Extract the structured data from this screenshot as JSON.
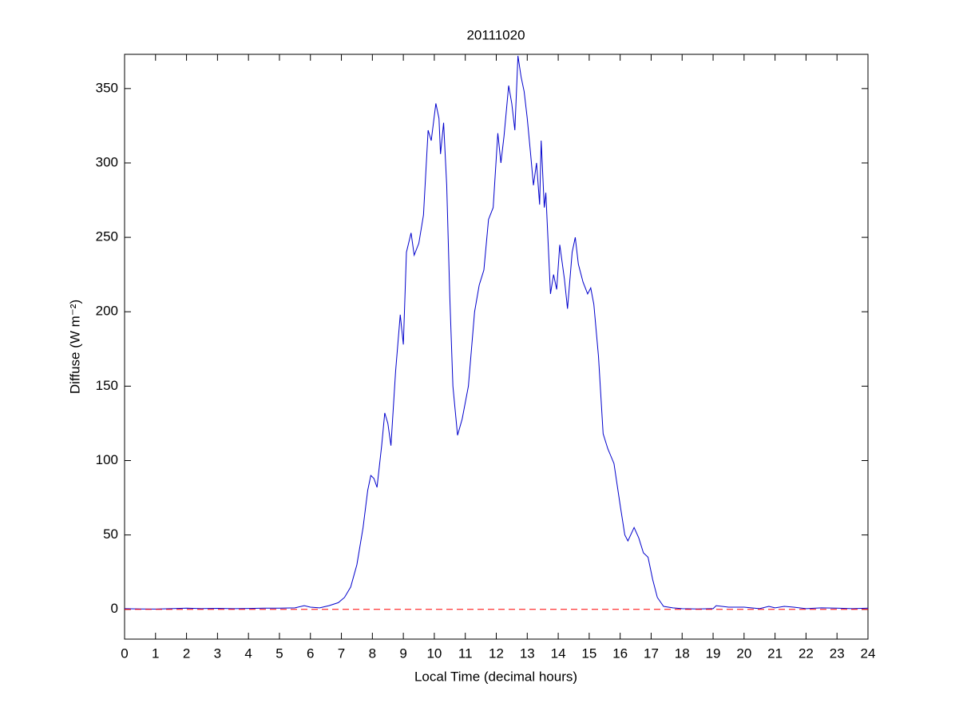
{
  "chart_data": {
    "type": "line",
    "title": "20111020",
    "xlabel": "Local Time (decimal hours)",
    "ylabel": "Diffuse (W m⁻²)",
    "xlim": [
      0,
      24
    ],
    "xticks": [
      0,
      1,
      2,
      3,
      4,
      5,
      6,
      7,
      8,
      9,
      10,
      11,
      12,
      13,
      14,
      15,
      16,
      17,
      18,
      19,
      20,
      21,
      22,
      23,
      24
    ],
    "ylim": [
      -20,
      373
    ],
    "yticks": [
      0,
      50,
      100,
      150,
      200,
      250,
      300,
      350
    ],
    "grid": false,
    "series": [
      {
        "color": "#0000cc",
        "dashed": false,
        "x": [
          0,
          0.5,
          1,
          1.5,
          2,
          2.5,
          3,
          3.5,
          4,
          4.5,
          5,
          5.5,
          5.8,
          6,
          6.3,
          6.6,
          6.9,
          7.1,
          7.3,
          7.5,
          7.7,
          7.85,
          7.95,
          8.05,
          8.15,
          8.3,
          8.4,
          8.5,
          8.6,
          8.75,
          8.9,
          9.0,
          9.1,
          9.25,
          9.35,
          9.5,
          9.65,
          9.8,
          9.9,
          10.05,
          10.15,
          10.2,
          10.3,
          10.4,
          10.5,
          10.6,
          10.75,
          10.9,
          11.1,
          11.3,
          11.45,
          11.6,
          11.75,
          11.9,
          12.05,
          12.15,
          12.25,
          12.4,
          12.5,
          12.6,
          12.7,
          12.8,
          12.9,
          13.0,
          13.1,
          13.2,
          13.3,
          13.4,
          13.45,
          13.55,
          13.6,
          13.75,
          13.85,
          13.95,
          14.05,
          14.2,
          14.3,
          14.45,
          14.55,
          14.65,
          14.8,
          14.95,
          15.05,
          15.15,
          15.3,
          15.45,
          15.6,
          15.8,
          16.0,
          16.15,
          16.25,
          16.45,
          16.6,
          16.75,
          16.9,
          17.05,
          17.2,
          17.4,
          17.7,
          18,
          18.5,
          19,
          19.1,
          19.5,
          20,
          20.5,
          20.8,
          21,
          21.3,
          21.6,
          22,
          22.5,
          23,
          23.5,
          24
        ],
        "values": [
          0.5,
          0.3,
          0.2,
          0.5,
          0.8,
          0.5,
          0.7,
          0.5,
          0.6,
          0.8,
          0.8,
          1,
          2.5,
          1.5,
          1,
          2.5,
          4.5,
          8,
          15,
          30,
          55,
          80,
          90,
          88,
          82,
          110,
          132,
          125,
          110,
          160,
          198,
          178,
          240,
          253,
          238,
          246,
          265,
          322,
          315,
          340,
          330,
          306,
          327,
          285,
          210,
          150,
          117,
          128,
          150,
          200,
          218,
          228,
          262,
          270,
          320,
          300,
          318,
          352,
          340,
          322,
          372,
          358,
          348,
          330,
          308,
          285,
          300,
          272,
          315,
          270,
          280,
          212,
          225,
          215,
          245,
          222,
          202,
          240,
          250,
          232,
          220,
          212,
          216,
          205,
          170,
          118,
          108,
          98,
          70,
          50,
          46,
          55,
          48,
          38,
          35,
          20,
          8,
          2,
          1,
          0.5,
          0.3,
          0.5,
          2.5,
          1.5,
          1.5,
          0.5,
          2,
          1,
          2,
          1.5,
          0.5,
          1,
          0.8,
          0.5,
          0.8
        ]
      },
      {
        "color": "#ff0000",
        "dashed": true,
        "x": [
          0,
          24
        ],
        "values": [
          0,
          0
        ]
      }
    ]
  }
}
